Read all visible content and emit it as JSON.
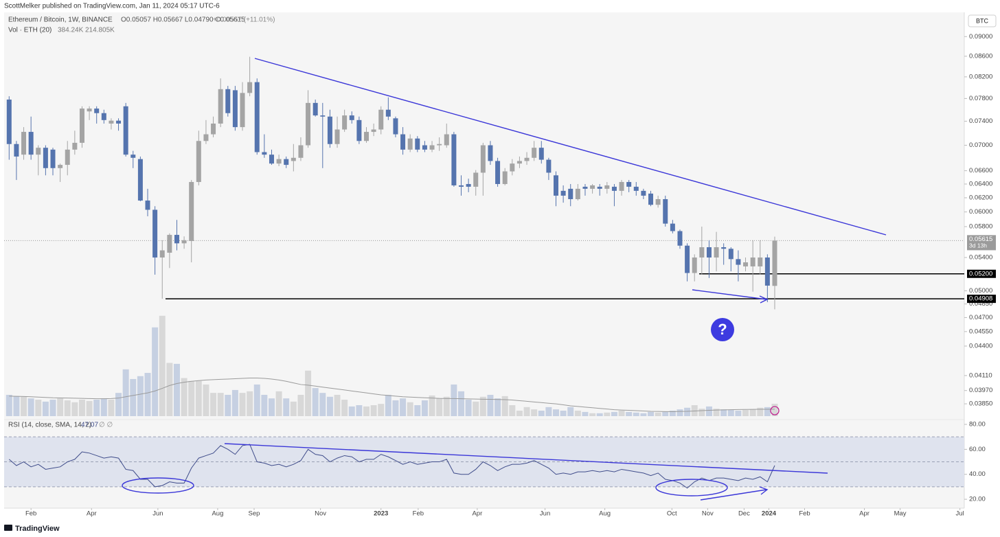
{
  "header": {
    "publisher": "ScottMelker published on TradingView.com, Jan 11, 2024 05:17 UTC-6"
  },
  "chart_data": {
    "type": "candlestick",
    "legend": {
      "symbol": "Ethereum / Bitcoin, 1W, BINANCE",
      "ohlc": "O0.05057 H0.05667 L0.04790 C0.05615",
      "change": "+0.00557 (+11.01%)"
    },
    "currency": "BTC",
    "annotation": "?",
    "up_color": "#a4a4a4",
    "down_color": "#5574ae",
    "open": [
      0.0778,
      0.0702,
      0.0685,
      0.0722,
      0.0685,
      0.0696,
      0.0693,
      0.0664,
      0.0669,
      0.0693,
      0.0704,
      0.0757,
      0.0762,
      0.0754,
      0.0736,
      0.0741,
      0.0766,
      0.0685,
      0.0678,
      0.0616,
      0.0603,
      0.054,
      0.0546,
      0.0569,
      0.0558,
      0.0561,
      0.0643,
      0.0707,
      0.0718,
      0.0736,
      0.0797,
      0.0795,
      0.073,
      0.079,
      0.081,
      0.0689,
      0.0685,
      0.0671,
      0.0678,
      0.0675,
      0.068,
      0.07,
      0.0772,
      0.075,
      0.0748,
      0.0702,
      0.0726,
      0.075,
      0.0742,
      0.0707,
      0.0722,
      0.0726,
      0.076,
      0.0745,
      0.0718,
      0.0693,
      0.0711,
      0.07,
      0.0693,
      0.07,
      0.07,
      0.0718,
      0.0638,
      0.064,
      0.0636,
      0.0657,
      0.07,
      0.0675,
      0.064,
      0.0659,
      0.0671,
      0.0675,
      0.068,
      0.0696,
      0.0677,
      0.0653,
      0.063,
      0.0633,
      0.0618,
      0.0636,
      0.0633,
      0.0636,
      0.0633,
      0.0636,
      0.063,
      0.0643,
      0.0636,
      0.063,
      0.0626,
      0.061,
      0.0618,
      0.0584,
      0.0574,
      0.0555,
      0.0521,
      0.054,
      0.0553,
      0.054,
      0.0553,
      0.0551,
      0.0538,
      0.0529,
      0.0529,
      0.0529,
      0.054,
      0.05057
    ],
    "high": [
      0.0784,
      0.0707,
      0.073,
      0.0748,
      0.07,
      0.07,
      0.0696,
      0.0671,
      0.0707,
      0.0724,
      0.0766,
      0.0766,
      0.0766,
      0.076,
      0.0745,
      0.0745,
      0.0772,
      0.0691,
      0.0682,
      0.0633,
      0.0608,
      0.0562,
      0.0571,
      0.0589,
      0.0567,
      0.0646,
      0.0724,
      0.0742,
      0.0748,
      0.0817,
      0.0803,
      0.0803,
      0.081,
      0.0859,
      0.0817,
      0.0718,
      0.0693,
      0.0685,
      0.0682,
      0.0702,
      0.0713,
      0.0795,
      0.0778,
      0.0772,
      0.076,
      0.0748,
      0.076,
      0.0757,
      0.0748,
      0.073,
      0.0736,
      0.0766,
      0.0782,
      0.0748,
      0.073,
      0.0718,
      0.0715,
      0.0707,
      0.0707,
      0.0713,
      0.0736,
      0.0722,
      0.0653,
      0.0648,
      0.0661,
      0.0704,
      0.0707,
      0.068,
      0.0664,
      0.0678,
      0.0682,
      0.0689,
      0.0707,
      0.0707,
      0.068,
      0.0659,
      0.0638,
      0.064,
      0.064,
      0.064,
      0.064,
      0.064,
      0.0643,
      0.064,
      0.0646,
      0.0646,
      0.0643,
      0.0633,
      0.063,
      0.0623,
      0.0623,
      0.0589,
      0.0576,
      0.0558,
      0.0544,
      0.058,
      0.0562,
      0.0573,
      0.0558,
      0.0553,
      0.0549,
      0.054,
      0.0562,
      0.0562,
      0.0544,
      0.05667
    ],
    "low": [
      0.0677,
      0.0646,
      0.0677,
      0.0677,
      0.0653,
      0.0653,
      0.0653,
      0.0643,
      0.0653,
      0.0685,
      0.0696,
      0.0742,
      0.0736,
      0.0736,
      0.0726,
      0.0724,
      0.0682,
      0.0664,
      0.0615,
      0.0594,
      0.0519,
      0.04908,
      0.0527,
      0.0549,
      0.0551,
      0.0534,
      0.0638,
      0.0702,
      0.0713,
      0.073,
      0.0748,
      0.0724,
      0.0724,
      0.0784,
      0.0685,
      0.068,
      0.0669,
      0.0667,
      0.0664,
      0.0659,
      0.0675,
      0.0696,
      0.0748,
      0.0664,
      0.0696,
      0.0696,
      0.0722,
      0.0736,
      0.0702,
      0.0704,
      0.0715,
      0.0718,
      0.0742,
      0.0713,
      0.0685,
      0.0689,
      0.0689,
      0.0689,
      0.0689,
      0.0691,
      0.0696,
      0.0636,
      0.0623,
      0.0628,
      0.0623,
      0.0623,
      0.0669,
      0.0636,
      0.0638,
      0.0653,
      0.0664,
      0.0669,
      0.0675,
      0.0671,
      0.0646,
      0.0608,
      0.0613,
      0.0608,
      0.0616,
      0.0623,
      0.0626,
      0.0623,
      0.0626,
      0.0608,
      0.0623,
      0.0628,
      0.0623,
      0.0618,
      0.0608,
      0.0606,
      0.058,
      0.0571,
      0.0551,
      0.0511,
      0.0511,
      0.0519,
      0.0515,
      0.0523,
      0.0531,
      0.0523,
      0.0511,
      0.0523,
      0.0499,
      0.0519,
      0.0487,
      0.0479
    ],
    "close": [
      0.0702,
      0.0682,
      0.0722,
      0.0685,
      0.0696,
      0.0664,
      0.0664,
      0.0669,
      0.0693,
      0.0704,
      0.0762,
      0.0762,
      0.0754,
      0.0742,
      0.0741,
      0.0736,
      0.0685,
      0.068,
      0.0616,
      0.0603,
      0.054,
      0.0549,
      0.0569,
      0.0558,
      0.0562,
      0.0643,
      0.0707,
      0.0718,
      0.0736,
      0.0797,
      0.0754,
      0.073,
      0.079,
      0.081,
      0.0689,
      0.0685,
      0.0671,
      0.0678,
      0.0669,
      0.068,
      0.07,
      0.0772,
      0.075,
      0.0748,
      0.0702,
      0.0726,
      0.075,
      0.0742,
      0.0707,
      0.0722,
      0.0726,
      0.076,
      0.0748,
      0.0718,
      0.0693,
      0.0711,
      0.0693,
      0.0693,
      0.07,
      0.0702,
      0.0718,
      0.0638,
      0.0636,
      0.0636,
      0.0657,
      0.07,
      0.0675,
      0.064,
      0.0659,
      0.0671,
      0.0675,
      0.068,
      0.0696,
      0.0677,
      0.0657,
      0.0623,
      0.0623,
      0.0618,
      0.0633,
      0.0633,
      0.0638,
      0.0633,
      0.0638,
      0.063,
      0.0643,
      0.0636,
      0.063,
      0.0623,
      0.061,
      0.0618,
      0.0584,
      0.0574,
      0.0555,
      0.0521,
      0.054,
      0.0553,
      0.054,
      0.0553,
      0.0551,
      0.0538,
      0.0531,
      0.0534,
      0.054,
      0.054,
      0.0506,
      0.05615
    ],
    "log_scale": true,
    "ylim": [
      0.0373,
      0.0964
    ],
    "yticks": [
      {
        "value": 0.09,
        "label": "0.09000"
      },
      {
        "value": 0.086,
        "label": "0.08600"
      },
      {
        "value": 0.082,
        "label": "0.08200"
      },
      {
        "value": 0.078,
        "label": "0.07800"
      },
      {
        "value": 0.074,
        "label": "0.07400"
      },
      {
        "value": 0.07,
        "label": "0.07000"
      },
      {
        "value": 0.066,
        "label": "0.06600"
      },
      {
        "value": 0.064,
        "label": "0.06400"
      },
      {
        "value": 0.062,
        "label": "0.06200"
      },
      {
        "value": 0.06,
        "label": "0.06000"
      },
      {
        "value": 0.058,
        "label": "0.05800"
      },
      {
        "value": 0.054,
        "label": "0.05400"
      },
      {
        "value": 0.05,
        "label": "0.05000"
      },
      {
        "value": 0.0485,
        "label": "0.04850"
      },
      {
        "value": 0.047,
        "label": "0.04700"
      },
      {
        "value": 0.0455,
        "label": "0.04550"
      },
      {
        "value": 0.044,
        "label": "0.04400"
      },
      {
        "value": 0.0411,
        "label": "0.04110"
      },
      {
        "value": 0.0397,
        "label": "0.03970"
      },
      {
        "value": 0.0385,
        "label": "0.03850"
      }
    ],
    "last_price": {
      "value": 0.05615,
      "label": "0.05615",
      "countdown": "3d 13h"
    },
    "price_lines": [
      {
        "value": 0.052,
        "label": "0.05200"
      },
      {
        "value": 0.04908,
        "label": "0.04908"
      }
    ],
    "xlim": [
      -0.5,
      131
    ],
    "xticks": [
      {
        "value": 3.0,
        "label": "Feb"
      },
      {
        "value": 11.3,
        "label": "Apr"
      },
      {
        "value": 20.4,
        "label": "Jun"
      },
      {
        "value": 28.6,
        "label": "Aug"
      },
      {
        "value": 33.6,
        "label": "Sep"
      },
      {
        "value": 42.7,
        "label": "Nov"
      },
      {
        "value": 51.0,
        "label": "2023"
      },
      {
        "value": 56.1,
        "label": "Feb"
      },
      {
        "value": 64.2,
        "label": "Apr"
      },
      {
        "value": 73.5,
        "label": "Jun"
      },
      {
        "value": 81.7,
        "label": "Aug"
      },
      {
        "value": 90.9,
        "label": "Oct"
      },
      {
        "value": 95.8,
        "label": "Nov"
      },
      {
        "value": 100.8,
        "label": "Dec"
      },
      {
        "value": 104.2,
        "label": "2024"
      },
      {
        "value": 109.1,
        "label": "Feb"
      },
      {
        "value": 117.3,
        "label": "Apr"
      },
      {
        "value": 122.2,
        "label": "May"
      },
      {
        "value": 130.4,
        "label": "Jul"
      }
    ],
    "volume": {
      "title": "Vol · ETH (20)",
      "last": "384.24K",
      "ma_last": "214.805K",
      "up_color": "#d8d8d8",
      "down_color": "#c6d0e2",
      "ma_color": "#9a9a9a",
      "ylim": [
        0,
        4000
      ],
      "values": [
        660,
        620,
        600,
        550,
        510,
        450,
        510,
        550,
        490,
        430,
        510,
        470,
        510,
        550,
        510,
        720,
        1450,
        1150,
        1240,
        1340,
        2750,
        3110,
        1650,
        1620,
        1180,
        1090,
        1090,
        980,
        720,
        720,
        660,
        810,
        720,
        770,
        980,
        660,
        550,
        770,
        550,
        450,
        660,
        1410,
        870,
        720,
        600,
        660,
        510,
        300,
        340,
        300,
        340,
        380,
        660,
        490,
        550,
        430,
        340,
        490,
        640,
        550,
        600,
        980,
        770,
        510,
        450,
        600,
        660,
        550,
        620,
        340,
        170,
        280,
        210,
        170,
        280,
        210,
        170,
        280,
        170,
        130,
        90,
        90,
        110,
        130,
        170,
        130,
        110,
        90,
        130,
        110,
        130,
        170,
        210,
        260,
        340,
        230,
        300,
        230,
        210,
        190,
        170,
        190,
        210,
        260,
        280,
        384.24
      ],
      "ma": [
        620,
        615,
        610,
        600,
        590,
        580,
        570,
        565,
        560,
        555,
        550,
        545,
        540,
        540,
        545,
        560,
        600,
        640,
        680,
        720,
        780,
        860,
        950,
        1010,
        1050,
        1080,
        1100,
        1120,
        1130,
        1140,
        1150,
        1160,
        1170,
        1180,
        1180,
        1170,
        1150,
        1120,
        1080,
        1030,
        980,
        960,
        930,
        900,
        870,
        840,
        810,
        780,
        750,
        720,
        690,
        660,
        640,
        620,
        600,
        590,
        580,
        570,
        560,
        550,
        545,
        545,
        540,
        535,
        530,
        525,
        520,
        515,
        510,
        500,
        480,
        460,
        440,
        420,
        400,
        380,
        350,
        320,
        300,
        280,
        260,
        240,
        220,
        200,
        190,
        180,
        170,
        160,
        150,
        145,
        140,
        140,
        145,
        150,
        160,
        170,
        180,
        190,
        195,
        200,
        205,
        208,
        210,
        212,
        213,
        214.805
      ]
    },
    "rsi": {
      "title": "RSI (14, close, SMA, 14, 2)",
      "last": "47.07",
      "icons": "∅ ∅",
      "color": "#3f4c8a",
      "ylim": [
        12.9,
        83.3
      ],
      "yticks": [
        {
          "value": 80,
          "label": "80.00"
        },
        {
          "value": 60,
          "label": "60.00"
        },
        {
          "value": 40,
          "label": "40.00"
        },
        {
          "value": 20,
          "label": "20.00"
        }
      ],
      "levels": [
        70,
        50,
        30
      ],
      "values": [
        52,
        47,
        50,
        46,
        48,
        44,
        45,
        46,
        50,
        52,
        58,
        57,
        55,
        53,
        54,
        53,
        44,
        43,
        36,
        36,
        30,
        31,
        34,
        33,
        33,
        45,
        53,
        55,
        57,
        63,
        60,
        56,
        63,
        64,
        50,
        49,
        47,
        48,
        46,
        48,
        51,
        60,
        56,
        55,
        50,
        53,
        55,
        54,
        50,
        52,
        52,
        56,
        54,
        51,
        48,
        50,
        48,
        49,
        50,
        50,
        52,
        41,
        40,
        40,
        44,
        50,
        47,
        43,
        46,
        48,
        48,
        49,
        51,
        48,
        45,
        40,
        41,
        40,
        42,
        42,
        43,
        42,
        43,
        42,
        44,
        43,
        42,
        41,
        39,
        41,
        36,
        35,
        33,
        29,
        34,
        37,
        35,
        37,
        37,
        36,
        35,
        37,
        36,
        38,
        34,
        47.07
      ]
    }
  },
  "footer": {
    "brand": "TradingView"
  }
}
